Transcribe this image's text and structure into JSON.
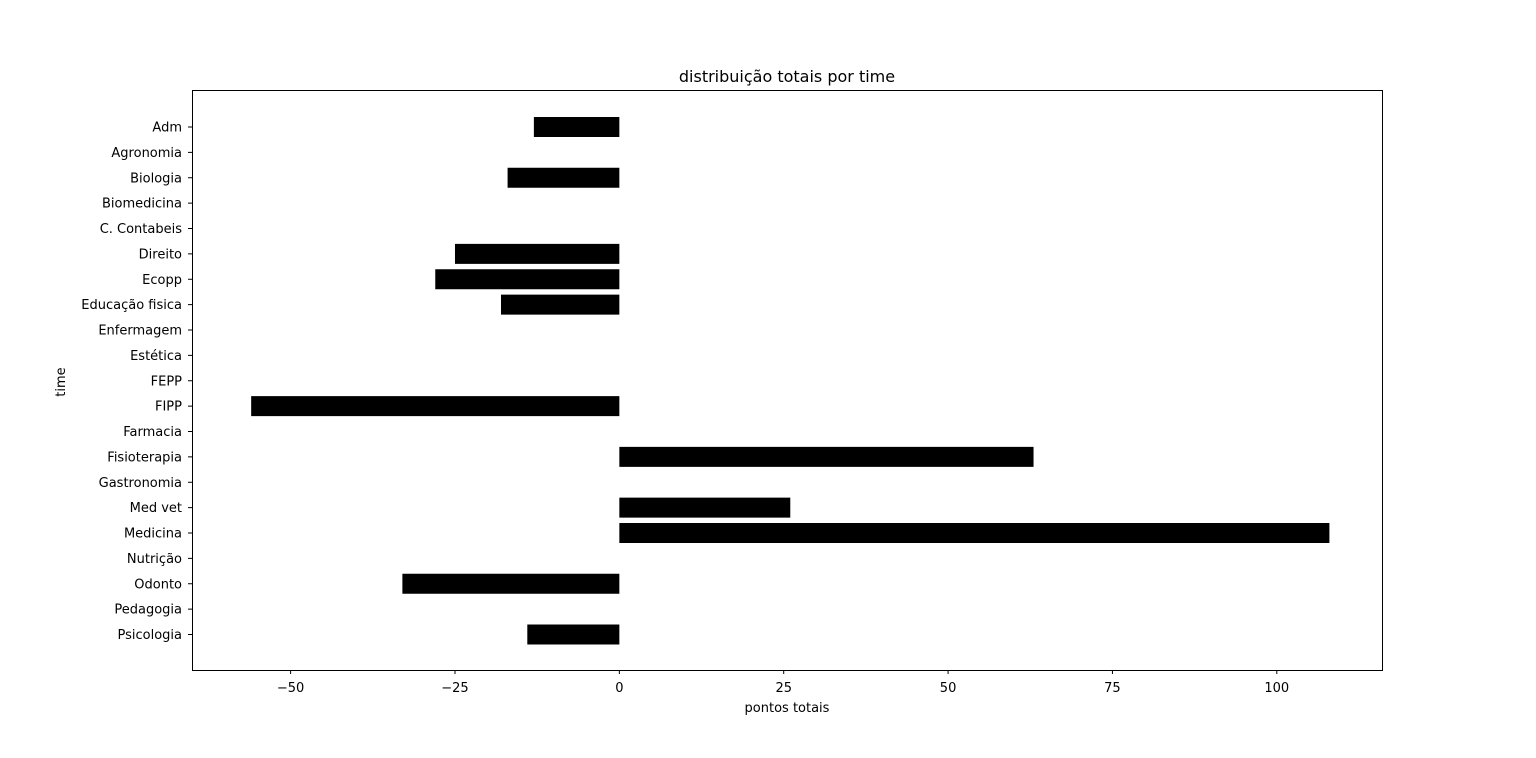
{
  "chart_data": {
    "type": "bar",
    "orientation": "horizontal",
    "title": "distribuição totais por time",
    "xlabel": "pontos totais",
    "ylabel": "time",
    "categories": [
      "Adm",
      "Agronomia",
      "Biologia",
      "Biomedicina",
      "C. Contabeis",
      "Direito",
      "Ecopp",
      "Educação fisica",
      "Enfermagem",
      "Estética",
      "FEPP",
      "FIPP",
      "Farmacia",
      "Fisioterapia",
      "Gastronomia",
      "Med vet",
      "Medicina",
      "Nutrição",
      "Odonto",
      "Pedagogia",
      "Psicologia"
    ],
    "values": [
      -13,
      0,
      -17,
      0,
      0,
      -25,
      -28,
      -18,
      0,
      0,
      0,
      -56,
      0,
      63,
      0,
      26,
      108,
      0,
      -33,
      0,
      -14
    ],
    "xlim": [
      -65,
      116
    ],
    "xticks": [
      -50,
      -25,
      0,
      25,
      50,
      75,
      100
    ],
    "xtick_labels": [
      "−50",
      "−25",
      "0",
      "25",
      "50",
      "75",
      "100"
    ],
    "bar_color": "#000000",
    "grid": false,
    "legend": "none"
  }
}
